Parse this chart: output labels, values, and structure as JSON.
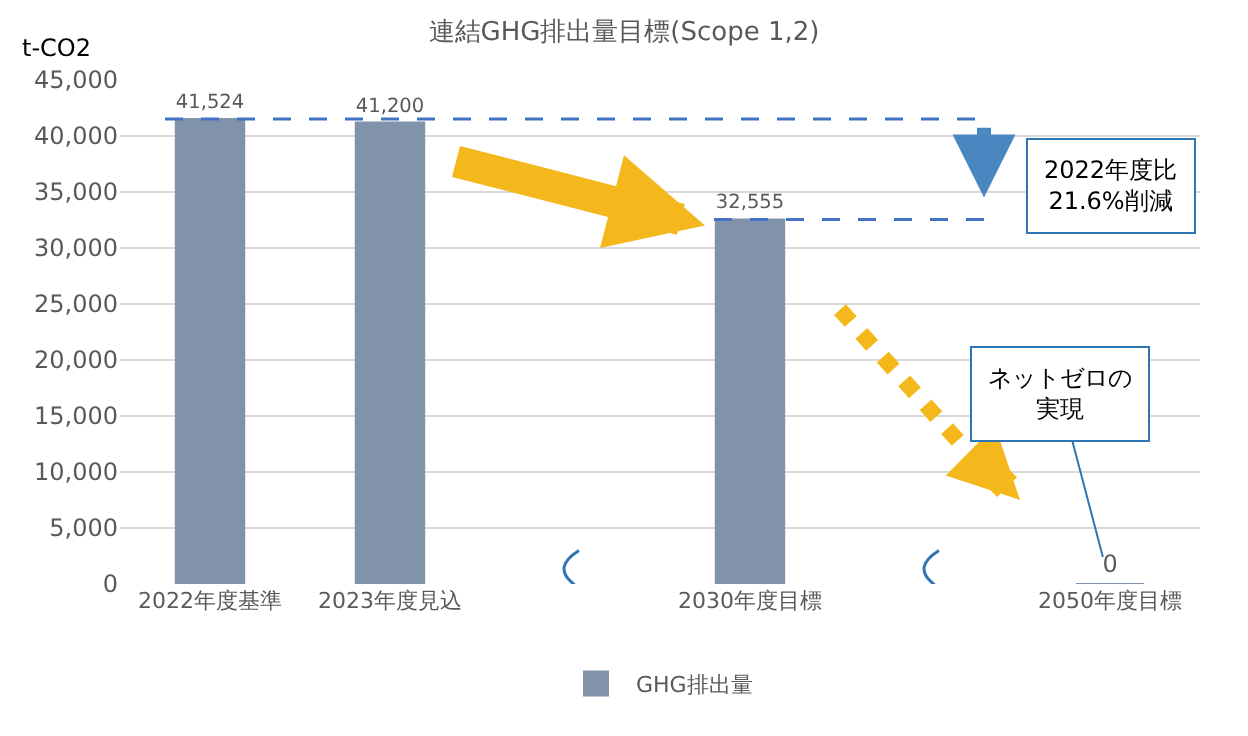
{
  "chart_data": {
    "type": "bar",
    "title": "連結GHG排出量目標(Scope 1,2)",
    "ylabel": "t-CO2",
    "categories": [
      "2022年度基準",
      "2023年度見込",
      null,
      "2030年度目標",
      null,
      "2050年度目標"
    ],
    "series": [
      {
        "name": "GHG排出量",
        "color": "#8093ab",
        "values": [
          41524,
          41200,
          null,
          32555,
          null,
          0
        ]
      }
    ],
    "value_labels": [
      "41,524",
      "41,200",
      null,
      "32,555",
      null,
      "0"
    ],
    "ylim": [
      0,
      45000
    ],
    "yticks": [
      {
        "value": 0,
        "label": "0"
      },
      {
        "value": 5000,
        "label": "5,000"
      },
      {
        "value": 10000,
        "label": "10,000"
      },
      {
        "value": 15000,
        "label": "15,000"
      },
      {
        "value": 20000,
        "label": "20,000"
      },
      {
        "value": 25000,
        "label": "25,000"
      },
      {
        "value": 30000,
        "label": "30,000"
      },
      {
        "value": 35000,
        "label": "35,000"
      },
      {
        "value": 40000,
        "label": "40,000"
      },
      {
        "value": 45000,
        "label": "45,000"
      }
    ],
    "ref_lines": [
      {
        "axis": "y",
        "value": 41524,
        "color": "#4472c4",
        "line_style": "dashed"
      },
      {
        "axis": "y",
        "value": 32555,
        "color": "#4472c4",
        "line_style": "dashed"
      }
    ],
    "annotations": [
      "2022年度比21.6%削減",
      {
        "text": "ネットゼロの実現",
        "x": "2050年度目標",
        "y": 0
      }
    ],
    "grid": "y",
    "legend": "bottom"
  }
}
